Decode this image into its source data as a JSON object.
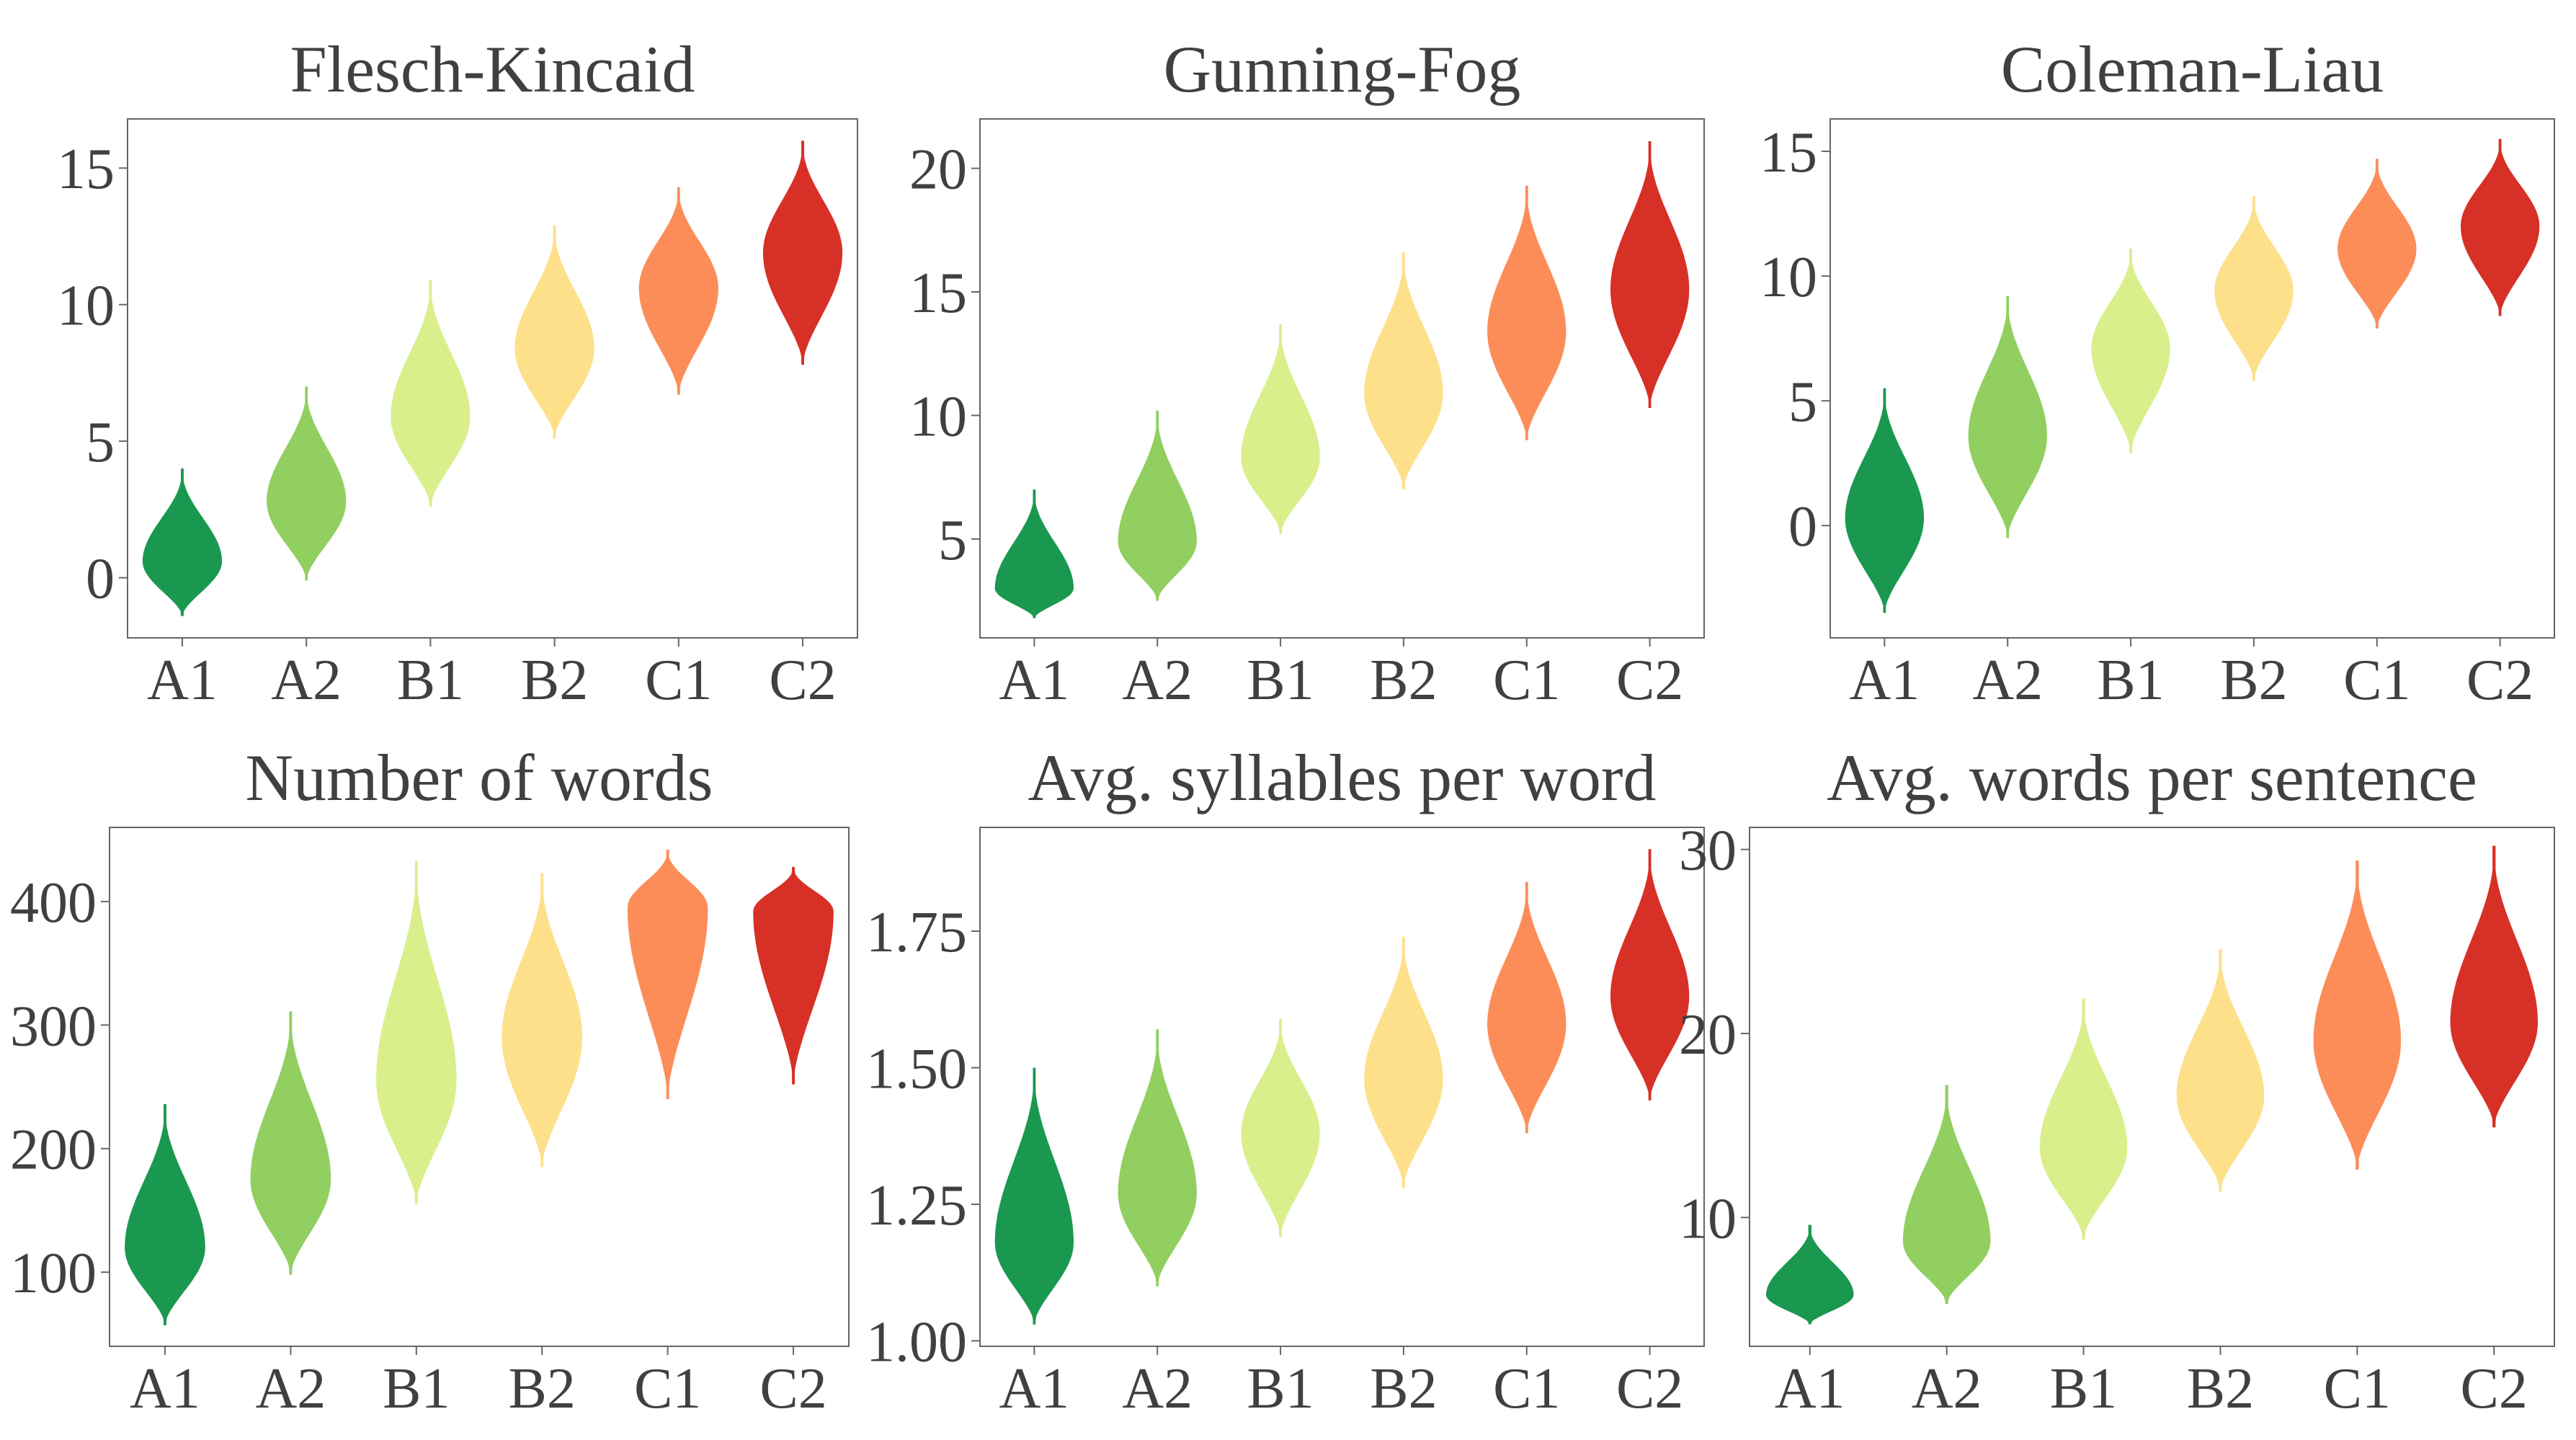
{
  "figure": {
    "levels": [
      "A1",
      "A2",
      "B1",
      "B2",
      "C1",
      "C2"
    ],
    "colors": [
      "#1a9850",
      "#91cf60",
      "#d9ef8b",
      "#fee08b",
      "#fc8d59",
      "#d73027"
    ]
  },
  "chart_data": [
    {
      "type": "violin",
      "title": "Flesch-Kincaid",
      "xlabel": "",
      "ylabel": "",
      "categories": [
        "A1",
        "A2",
        "B1",
        "B2",
        "C1",
        "C2"
      ],
      "ylim": [
        -2.2,
        16.8
      ],
      "yticks": [
        0,
        5,
        10,
        15
      ],
      "ytick_labels": [
        "0",
        "5",
        "10",
        "15"
      ],
      "grid": false,
      "violins": [
        {
          "category": "A1",
          "min": -1.4,
          "max": 4.0,
          "median": 0.6
        },
        {
          "category": "A2",
          "min": -0.1,
          "max": 7.0,
          "median": 2.8
        },
        {
          "category": "B1",
          "min": 2.6,
          "max": 10.9,
          "median": 5.9
        },
        {
          "category": "B2",
          "min": 5.1,
          "max": 12.9,
          "median": 8.4
        },
        {
          "category": "C1",
          "min": 6.7,
          "max": 14.3,
          "median": 10.6
        },
        {
          "category": "C2",
          "min": 7.8,
          "max": 16.0,
          "median": 11.9
        }
      ]
    },
    {
      "type": "violin",
      "title": "Gunning-Fog",
      "xlabel": "",
      "ylabel": "",
      "categories": [
        "A1",
        "A2",
        "B1",
        "B2",
        "C1",
        "C2"
      ],
      "ylim": [
        1.0,
        22.0
      ],
      "yticks": [
        5,
        10,
        15,
        20
      ],
      "ytick_labels": [
        "5",
        "10",
        "15",
        "20"
      ],
      "grid": false,
      "violins": [
        {
          "category": "A1",
          "min": 1.8,
          "max": 7.0,
          "median": 3.0
        },
        {
          "category": "A2",
          "min": 2.5,
          "max": 10.2,
          "median": 4.9
        },
        {
          "category": "B1",
          "min": 5.2,
          "max": 13.7,
          "median": 8.3
        },
        {
          "category": "B2",
          "min": 7.0,
          "max": 16.6,
          "median": 10.9
        },
        {
          "category": "C1",
          "min": 9.0,
          "max": 19.3,
          "median": 13.4
        },
        {
          "category": "C2",
          "min": 10.3,
          "max": 21.1,
          "median": 15.1
        }
      ]
    },
    {
      "type": "violin",
      "title": "Coleman-Liau",
      "xlabel": "",
      "ylabel": "",
      "categories": [
        "A1",
        "A2",
        "B1",
        "B2",
        "C1",
        "C2"
      ],
      "ylim": [
        -4.5,
        16.3
      ],
      "yticks": [
        0,
        5,
        10,
        15
      ],
      "ytick_labels": [
        "0",
        "5",
        "10",
        "15"
      ],
      "grid": false,
      "violins": [
        {
          "category": "A1",
          "min": -3.5,
          "max": 5.5,
          "median": 0.3
        },
        {
          "category": "A2",
          "min": -0.5,
          "max": 9.2,
          "median": 3.6
        },
        {
          "category": "B1",
          "min": 2.9,
          "max": 11.1,
          "median": 7.1
        },
        {
          "category": "B2",
          "min": 5.8,
          "max": 13.2,
          "median": 9.4
        },
        {
          "category": "C1",
          "min": 7.9,
          "max": 14.7,
          "median": 11.1
        },
        {
          "category": "C2",
          "min": 8.4,
          "max": 15.5,
          "median": 12.0
        }
      ]
    },
    {
      "type": "violin",
      "title": "Number of words",
      "xlabel": "",
      "ylabel": "",
      "categories": [
        "A1",
        "A2",
        "B1",
        "B2",
        "C1",
        "C2"
      ],
      "ylim": [
        40,
        460
      ],
      "yticks": [
        100,
        200,
        300,
        400
      ],
      "ytick_labels": [
        "100",
        "200",
        "300",
        "400"
      ],
      "grid": false,
      "violins": [
        {
          "category": "A1",
          "min": 57,
          "max": 236,
          "median": 120
        },
        {
          "category": "A2",
          "min": 98,
          "max": 311,
          "median": 175
        },
        {
          "category": "B1",
          "min": 155,
          "max": 433,
          "median": 255
        },
        {
          "category": "B2",
          "min": 185,
          "max": 423,
          "median": 290
        },
        {
          "category": "C1",
          "min": 240,
          "max": 442,
          "median": 395
        },
        {
          "category": "C2",
          "min": 252,
          "max": 428,
          "median": 392
        }
      ]
    },
    {
      "type": "violin",
      "title": "Avg. syllables per word",
      "xlabel": "",
      "ylabel": "",
      "categories": [
        "A1",
        "A2",
        "B1",
        "B2",
        "C1",
        "C2"
      ],
      "ylim": [
        0.99,
        1.94
      ],
      "yticks": [
        1.0,
        1.25,
        1.5,
        1.75
      ],
      "ytick_labels": [
        "1.00",
        "1.25",
        "1.50",
        "1.75"
      ],
      "grid": false,
      "violins": [
        {
          "category": "A1",
          "min": 1.03,
          "max": 1.5,
          "median": 1.18
        },
        {
          "category": "A2",
          "min": 1.1,
          "max": 1.57,
          "median": 1.27
        },
        {
          "category": "B1",
          "min": 1.19,
          "max": 1.59,
          "median": 1.38
        },
        {
          "category": "B2",
          "min": 1.28,
          "max": 1.74,
          "median": 1.48
        },
        {
          "category": "C1",
          "min": 1.38,
          "max": 1.84,
          "median": 1.58
        },
        {
          "category": "C2",
          "min": 1.44,
          "max": 1.9,
          "median": 1.63
        }
      ]
    },
    {
      "type": "violin",
      "title": "Avg. words per sentence",
      "xlabel": "",
      "ylabel": "",
      "categories": [
        "A1",
        "A2",
        "B1",
        "B2",
        "C1",
        "C2"
      ],
      "ylim": [
        3.0,
        31.2
      ],
      "yticks": [
        10,
        20,
        30
      ],
      "ytick_labels": [
        "10",
        "20",
        "30"
      ],
      "grid": false,
      "violins": [
        {
          "category": "A1",
          "min": 4.2,
          "max": 9.6,
          "median": 5.8
        },
        {
          "category": "A2",
          "min": 5.3,
          "max": 17.2,
          "median": 8.7
        },
        {
          "category": "B1",
          "min": 8.8,
          "max": 21.9,
          "median": 13.8
        },
        {
          "category": "B2",
          "min": 11.4,
          "max": 24.6,
          "median": 16.6
        },
        {
          "category": "C1",
          "min": 12.6,
          "max": 29.4,
          "median": 19.6
        },
        {
          "category": "C2",
          "min": 14.9,
          "max": 30.2,
          "median": 20.6
        }
      ]
    }
  ]
}
